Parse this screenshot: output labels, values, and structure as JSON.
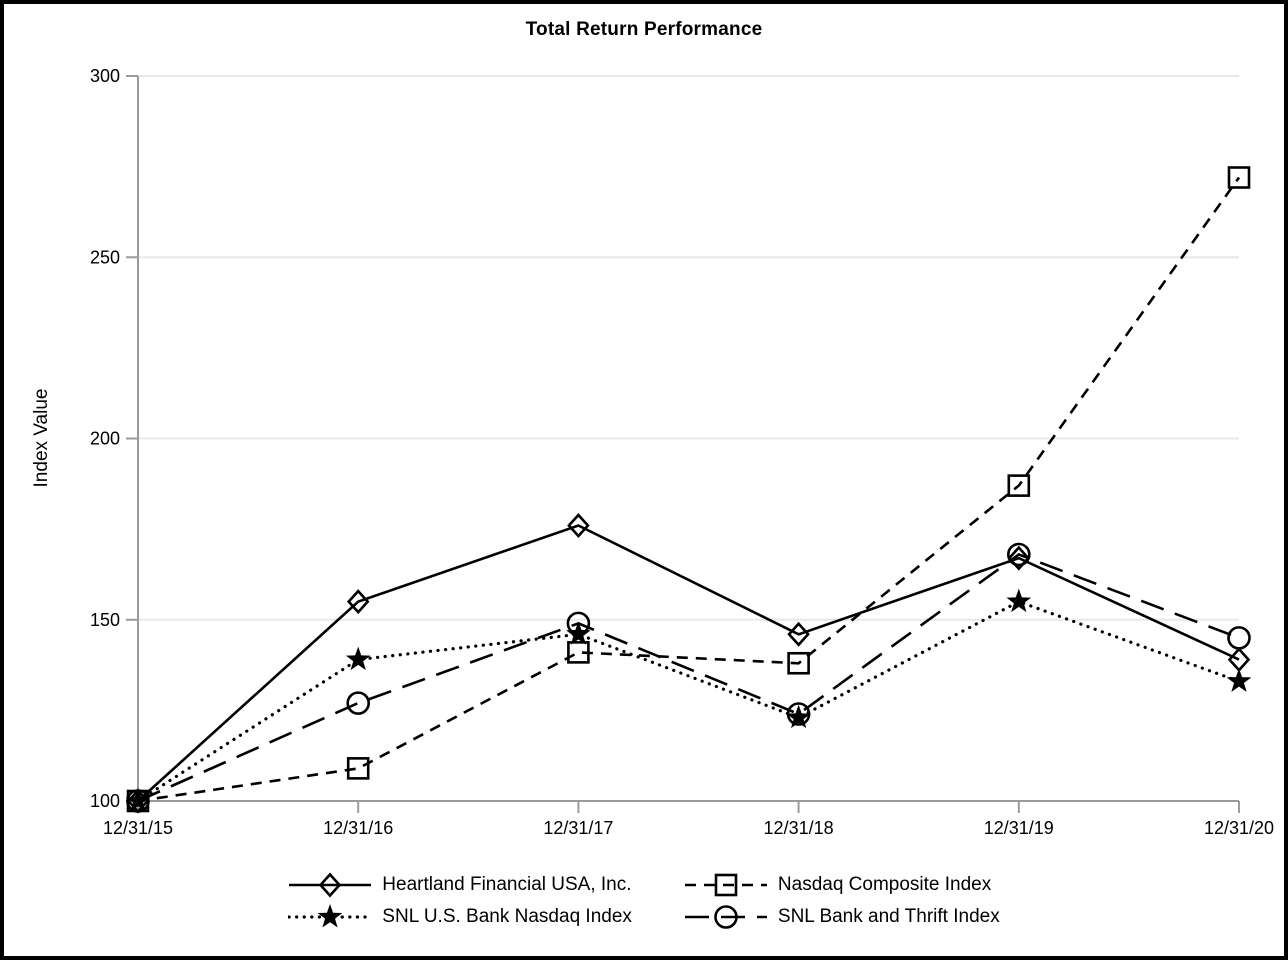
{
  "chart_data": {
    "type": "line",
    "title": "Total Return Performance",
    "ylabel": "Index Value",
    "xlabel": "",
    "categories": [
      "12/31/15",
      "12/31/16",
      "12/31/17",
      "12/31/18",
      "12/31/19",
      "12/31/20"
    ],
    "yticks": [
      "100",
      "150",
      "200",
      "250",
      "300"
    ],
    "ylim": [
      100,
      300
    ],
    "grid": true,
    "legend_position": "bottom-center",
    "series": [
      {
        "name": "Heartland Financial USA, Inc.",
        "marker": "diamond",
        "line_style": "solid",
        "values": [
          100,
          155,
          176,
          146,
          167,
          139
        ]
      },
      {
        "name": "Nasdaq Composite Index",
        "marker": "square",
        "line_style": "dashed",
        "values": [
          100,
          109,
          141,
          138,
          187,
          272
        ]
      },
      {
        "name": "SNL U.S. Bank Nasdaq Index",
        "marker": "star",
        "line_style": "dotted",
        "values": [
          100,
          139,
          146,
          123,
          155,
          133
        ]
      },
      {
        "name": "SNL Bank and Thrift Index",
        "marker": "circle",
        "line_style": "long-dash",
        "values": [
          100,
          127,
          149,
          124,
          168,
          145
        ]
      }
    ],
    "colors": {
      "series_line": "#000000",
      "grid_line": "#e8e8e8",
      "axis_line": "#9b9b9b",
      "text": "#000000",
      "background": "#ffffff",
      "frame_border": "#000000"
    }
  }
}
